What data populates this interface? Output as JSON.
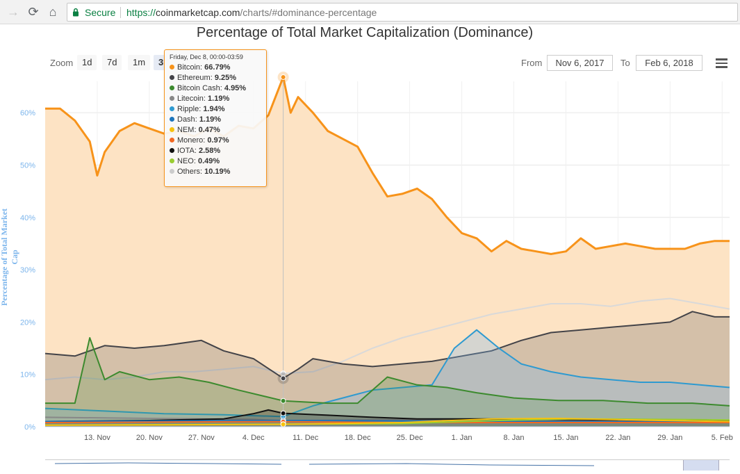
{
  "browser": {
    "secure_label": "Secure",
    "url_scheme": "https://",
    "url_host": "coinmarketcap.com",
    "url_path": "/charts/#dominance-percentage",
    "icons": [
      "back-icon",
      "reload-icon",
      "home-icon",
      "lock-icon"
    ]
  },
  "toolbar": {
    "zoom_label": "Zoom",
    "zoom_buttons": [
      "1d",
      "7d",
      "1m",
      "3"
    ],
    "from_label": "From",
    "from_value": "Nov 6, 2017",
    "to_label": "To",
    "to_value": "Feb 6, 2018",
    "menu_icon": "hamburger-menu-icon"
  },
  "tooltip": {
    "date": "Friday, Dec 8, 00:00-03:59",
    "items": [
      {
        "name": "Bitcoin",
        "value": "66.79%",
        "color": "#f7931a"
      },
      {
        "name": "Ethereum",
        "value": "9.25%",
        "color": "#434348"
      },
      {
        "name": "Bitcoin Cash",
        "value": "4.95%",
        "color": "#3c8a2e"
      },
      {
        "name": "Litecoin",
        "value": "1.19%",
        "color": "#888888"
      },
      {
        "name": "Ripple",
        "value": "1.94%",
        "color": "#2e9ad0"
      },
      {
        "name": "Dash",
        "value": "1.19%",
        "color": "#1c75bc"
      },
      {
        "name": "NEM",
        "value": "0.47%",
        "color": "#f7c20e"
      },
      {
        "name": "Monero",
        "value": "0.97%",
        "color": "#f26822"
      },
      {
        "name": "IOTA",
        "value": "2.58%",
        "color": "#111111"
      },
      {
        "name": "NEO",
        "value": "0.49%",
        "color": "#9acd32"
      },
      {
        "name": "Others",
        "value": "10.19%",
        "color": "#cccccc"
      }
    ]
  },
  "chart_data": {
    "type": "area",
    "title": "Percentage of Total Market Capitalization (Dominance)",
    "ylabel": "Percentage of Total Market Cap",
    "ylim": [
      0,
      66
    ],
    "y_ticks": [
      "0%",
      "10%",
      "20%",
      "30%",
      "40%",
      "50%",
      "60%"
    ],
    "y_tick_values": [
      0,
      10,
      20,
      30,
      40,
      50,
      60
    ],
    "x_range": [
      "2017-11-06",
      "2018-02-06"
    ],
    "x_ticks": [
      {
        "label": "13. Nov",
        "date": "2017-11-13"
      },
      {
        "label": "20. Nov",
        "date": "2017-11-20"
      },
      {
        "label": "27. Nov",
        "date": "2017-11-27"
      },
      {
        "label": "4. Dec",
        "date": "2017-12-04"
      },
      {
        "label": "11. Dec",
        "date": "2017-12-11"
      },
      {
        "label": "18. Dec",
        "date": "2017-12-18"
      },
      {
        "label": "25. Dec",
        "date": "2017-12-25"
      },
      {
        "label": "1. Jan",
        "date": "2018-01-01"
      },
      {
        "label": "8. Jan",
        "date": "2018-01-08"
      },
      {
        "label": "15. Jan",
        "date": "2018-01-15"
      },
      {
        "label": "22. Jan",
        "date": "2018-01-22"
      },
      {
        "label": "29. Jan",
        "date": "2018-01-29"
      },
      {
        "label": "5. Feb",
        "date": "2018-02-05"
      }
    ],
    "crosshair_date": "2017-12-08",
    "grid": true,
    "legend": "tooltip",
    "series": [
      {
        "name": "Bitcoin",
        "color": "#f7931a",
        "fill": "#fde3c4",
        "x": [
          "2017-11-06",
          "2017-11-08",
          "2017-11-10",
          "2017-11-12",
          "2017-11-13",
          "2017-11-14",
          "2017-11-16",
          "2017-11-18",
          "2017-11-20",
          "2017-11-22",
          "2017-11-24",
          "2017-11-26",
          "2017-11-28",
          "2017-11-30",
          "2017-12-02",
          "2017-12-04",
          "2017-12-06",
          "2017-12-08",
          "2017-12-09",
          "2017-12-10",
          "2017-12-12",
          "2017-12-14",
          "2017-12-16",
          "2017-12-18",
          "2017-12-20",
          "2017-12-22",
          "2017-12-24",
          "2017-12-26",
          "2017-12-28",
          "2017-12-30",
          "2018-01-01",
          "2018-01-03",
          "2018-01-05",
          "2018-01-07",
          "2018-01-09",
          "2018-01-11",
          "2018-01-13",
          "2018-01-15",
          "2018-01-17",
          "2018-01-19",
          "2018-01-21",
          "2018-01-23",
          "2018-01-25",
          "2018-01-27",
          "2018-01-29",
          "2018-01-31",
          "2018-02-02",
          "2018-02-04",
          "2018-02-06"
        ],
        "values": [
          60.8,
          60.8,
          58.5,
          54.5,
          48.0,
          52.5,
          56.5,
          58.0,
          57.0,
          56.0,
          56.5,
          55.5,
          57.0,
          55.5,
          57.5,
          57.0,
          59.5,
          66.8,
          60.0,
          63.0,
          60.0,
          56.5,
          55.0,
          53.5,
          48.5,
          44.0,
          44.5,
          45.5,
          43.5,
          40.0,
          37.0,
          36.0,
          33.5,
          35.5,
          34.0,
          33.5,
          33.0,
          33.5,
          36.0,
          34.0,
          34.5,
          35.0,
          34.5,
          34.0,
          34.0,
          34.0,
          35.0,
          35.5,
          35.5
        ]
      },
      {
        "name": "Others",
        "color": "#d9d9d9",
        "fill": "none",
        "x": [
          "2017-11-06",
          "2017-11-10",
          "2017-11-14",
          "2017-11-18",
          "2017-11-22",
          "2017-11-26",
          "2017-11-30",
          "2017-12-04",
          "2017-12-08",
          "2017-12-12",
          "2017-12-16",
          "2017-12-20",
          "2017-12-24",
          "2017-12-28",
          "2018-01-01",
          "2018-01-05",
          "2018-01-09",
          "2018-01-13",
          "2018-01-17",
          "2018-01-21",
          "2018-01-25",
          "2018-01-29",
          "2018-02-02",
          "2018-02-06"
        ],
        "values": [
          9.0,
          9.5,
          9.0,
          9.5,
          10.5,
          10.5,
          11.0,
          11.5,
          10.2,
          10.5,
          12.5,
          15.0,
          17.0,
          18.5,
          20.0,
          21.5,
          22.5,
          23.5,
          23.5,
          23.0,
          24.0,
          24.5,
          23.5,
          22.5
        ]
      },
      {
        "name": "Ethereum",
        "color": "#434348",
        "fill": "rgba(67,67,72,0.22)",
        "x": [
          "2017-11-06",
          "2017-11-10",
          "2017-11-14",
          "2017-11-18",
          "2017-11-22",
          "2017-11-27",
          "2017-11-30",
          "2017-12-04",
          "2017-12-08",
          "2017-12-10",
          "2017-12-12",
          "2017-12-16",
          "2017-12-20",
          "2017-12-24",
          "2017-12-28",
          "2018-01-01",
          "2018-01-05",
          "2018-01-09",
          "2018-01-13",
          "2018-01-17",
          "2018-01-21",
          "2018-01-25",
          "2018-01-29",
          "2018-02-01",
          "2018-02-04",
          "2018-02-06"
        ],
        "values": [
          14.0,
          13.5,
          15.5,
          15.0,
          15.5,
          16.5,
          14.5,
          13.0,
          9.25,
          11.0,
          13.0,
          12.0,
          11.5,
          12.0,
          12.5,
          13.5,
          14.5,
          16.5,
          18.0,
          18.5,
          19.0,
          19.5,
          20.0,
          22.0,
          21.0,
          21.0
        ]
      },
      {
        "name": "Ripple",
        "color": "#2e9ad0",
        "fill": "rgba(124,181,236,0.30)",
        "x": [
          "2017-11-06",
          "2017-11-14",
          "2017-11-22",
          "2017-11-30",
          "2017-12-08",
          "2017-12-12",
          "2017-12-16",
          "2017-12-20",
          "2017-12-24",
          "2017-12-28",
          "2017-12-31",
          "2018-01-03",
          "2018-01-06",
          "2018-01-09",
          "2018-01-13",
          "2018-01-17",
          "2018-01-21",
          "2018-01-25",
          "2018-01-29",
          "2018-02-02",
          "2018-02-06"
        ],
        "values": [
          3.5,
          3.0,
          2.5,
          2.3,
          1.94,
          4.0,
          5.5,
          7.0,
          7.5,
          8.0,
          15.0,
          18.5,
          15.0,
          12.0,
          10.5,
          9.5,
          9.0,
          8.5,
          8.5,
          8.0,
          7.5
        ]
      },
      {
        "name": "Bitcoin Cash",
        "color": "#3c8a2e",
        "fill": "rgba(60,138,46,0.20)",
        "x": [
          "2017-11-06",
          "2017-11-10",
          "2017-11-12",
          "2017-11-14",
          "2017-11-16",
          "2017-11-20",
          "2017-11-24",
          "2017-11-28",
          "2017-12-02",
          "2017-12-08",
          "2017-12-14",
          "2017-12-18",
          "2017-12-20",
          "2017-12-22",
          "2017-12-26",
          "2017-12-30",
          "2018-01-03",
          "2018-01-08",
          "2018-01-14",
          "2018-01-20",
          "2018-01-26",
          "2018-02-01",
          "2018-02-06"
        ],
        "values": [
          4.5,
          4.5,
          17.0,
          9.0,
          10.5,
          9.0,
          9.5,
          8.5,
          7.0,
          4.95,
          4.5,
          4.5,
          7.0,
          9.5,
          8.0,
          7.5,
          6.5,
          5.5,
          5.0,
          5.0,
          4.5,
          4.5,
          4.0
        ]
      },
      {
        "name": "Litecoin",
        "color": "#888888",
        "fill": "none",
        "x": [
          "2017-11-06",
          "2017-11-20",
          "2017-12-04",
          "2017-12-08",
          "2017-12-22",
          "2018-01-08",
          "2018-01-22",
          "2018-02-06"
        ],
        "values": [
          1.8,
          1.6,
          1.4,
          1.19,
          1.3,
          1.2,
          1.1,
          1.0
        ]
      },
      {
        "name": "IOTA",
        "color": "#111111",
        "fill": "rgba(17,17,17,0.25)",
        "x": [
          "2017-11-06",
          "2017-11-20",
          "2017-11-30",
          "2017-12-04",
          "2017-12-06",
          "2017-12-08",
          "2017-12-14",
          "2017-12-20",
          "2017-12-26",
          "2018-01-04",
          "2018-01-14",
          "2018-01-24",
          "2018-02-06"
        ],
        "values": [
          1.0,
          1.2,
          1.5,
          2.5,
          3.2,
          2.58,
          2.2,
          1.8,
          1.5,
          1.5,
          1.4,
          1.3,
          1.2
        ]
      },
      {
        "name": "Dash",
        "color": "#1c75bc",
        "fill": "none",
        "x": [
          "2017-11-06",
          "2017-11-20",
          "2017-12-08",
          "2017-12-24",
          "2018-01-10",
          "2018-01-26",
          "2018-02-06"
        ],
        "values": [
          1.0,
          1.1,
          1.19,
          1.1,
          1.0,
          0.9,
          0.9
        ]
      },
      {
        "name": "Monero",
        "color": "#f26822",
        "fill": "none",
        "x": [
          "2017-11-06",
          "2017-11-22",
          "2017-12-08",
          "2017-12-24",
          "2018-01-10",
          "2018-01-26",
          "2018-02-06"
        ],
        "values": [
          0.8,
          0.9,
          0.97,
          0.8,
          0.8,
          0.8,
          0.8
        ]
      },
      {
        "name": "NEO",
        "color": "#9acd32",
        "fill": "none",
        "x": [
          "2017-11-06",
          "2017-11-20",
          "2017-12-08",
          "2017-12-24",
          "2018-01-06",
          "2018-01-16",
          "2018-01-30",
          "2018-02-06"
        ],
        "values": [
          0.3,
          0.4,
          0.49,
          0.6,
          1.2,
          1.5,
          1.4,
          1.3
        ]
      },
      {
        "name": "NEM",
        "color": "#f7c20e",
        "fill": "none",
        "x": [
          "2017-11-06",
          "2017-11-22",
          "2017-12-08",
          "2017-12-24",
          "2018-01-05",
          "2018-01-14",
          "2018-01-28",
          "2018-02-06"
        ],
        "values": [
          0.3,
          0.35,
          0.47,
          0.8,
          1.5,
          1.6,
          1.2,
          1.0
        ]
      }
    ]
  }
}
